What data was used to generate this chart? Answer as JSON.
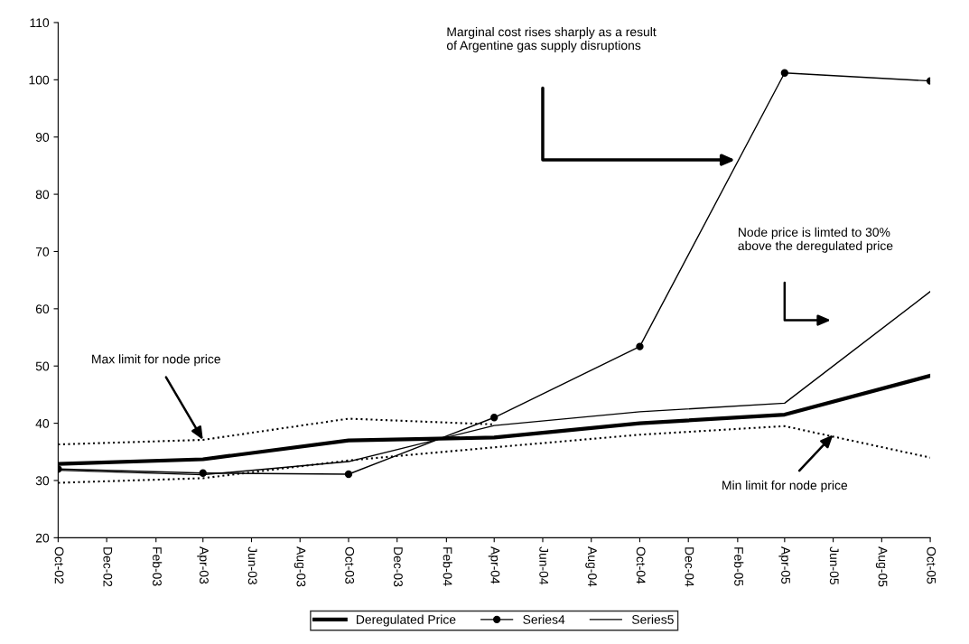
{
  "chart_data": {
    "type": "line",
    "ylim": [
      20,
      110
    ],
    "yticks": [
      20,
      30,
      40,
      50,
      60,
      70,
      80,
      90,
      100,
      110
    ],
    "xlim": [
      "2002-10",
      "2005-10"
    ],
    "xticks": [
      {
        "value": "2002-10",
        "label": "Oct-02"
      },
      {
        "value": "2002-12",
        "label": "Dec-02"
      },
      {
        "value": "2003-02",
        "label": "Feb-03"
      },
      {
        "value": "2003-04",
        "label": "Apr-03"
      },
      {
        "value": "2003-06",
        "label": "Jun-03"
      },
      {
        "value": "2003-08",
        "label": "Aug-03"
      },
      {
        "value": "2003-10",
        "label": "Oct-03"
      },
      {
        "value": "2003-12",
        "label": "Dec-03"
      },
      {
        "value": "2004-02",
        "label": "Feb-04"
      },
      {
        "value": "2004-04",
        "label": "Apr-04"
      },
      {
        "value": "2004-06",
        "label": "Jun-04"
      },
      {
        "value": "2004-08",
        "label": "Aug-04"
      },
      {
        "value": "2004-10",
        "label": "Oct-04"
      },
      {
        "value": "2004-12",
        "label": "Dec-04"
      },
      {
        "value": "2005-02",
        "label": "Feb-05"
      },
      {
        "value": "2005-04",
        "label": "Apr-05"
      },
      {
        "value": "2005-06",
        "label": "Jun-05"
      },
      {
        "value": "2005-08",
        "label": "Aug-05"
      },
      {
        "value": "2005-10",
        "label": "Oct-05"
      }
    ],
    "grid": false,
    "legend": "bottom",
    "series": [
      {
        "name": "Deregulated Price",
        "color": "#000000",
        "marker": "none",
        "line_style": "solid",
        "x": [
          "2002-10",
          "2003-04",
          "2003-10",
          "2004-04",
          "2004-10",
          "2005-04",
          "2005-10"
        ],
        "values": [
          32.9,
          33.7,
          37.0,
          37.5,
          40.0,
          41.5,
          48.3
        ]
      },
      {
        "name": "Series4",
        "color": "#000000",
        "marker": "circle",
        "line_style": "solid",
        "x": [
          "2002-10",
          "2003-04",
          "2003-10",
          "2004-04",
          "2004-10",
          "2005-04",
          "2005-10"
        ],
        "values": [
          32.0,
          31.3,
          31.1,
          41.0,
          53.4,
          101.2,
          99.8
        ]
      },
      {
        "name": "Series5",
        "color": "#000000",
        "marker": "none",
        "line_style": "solid",
        "x": [
          "2002-10",
          "2003-04",
          "2003-10",
          "2004-04",
          "2004-10",
          "2005-04",
          "2005-10"
        ],
        "values": [
          31.8,
          31.0,
          33.3,
          39.6,
          42.0,
          43.5,
          63.0
        ]
      },
      {
        "color": "#000000",
        "marker": "none",
        "line_style": "dotted",
        "x": [
          "2002-10",
          "2003-04",
          "2003-10",
          "2004-04"
        ],
        "values": [
          36.3,
          37.1,
          40.8,
          39.8
        ]
      },
      {
        "color": "#000000",
        "marker": "none",
        "line_style": "dotted",
        "x": [
          "2002-10",
          "2003-04",
          "2003-10",
          "2004-04",
          "2004-10",
          "2005-04",
          "2005-10"
        ],
        "values": [
          29.6,
          30.4,
          33.5,
          35.8,
          38.0,
          39.5,
          34.0
        ]
      }
    ],
    "annotations": [
      "Marginal cost rises sharply as a result\nof Argentine gas supply disruptions",
      "Node price is limted to 30%\nabove the deregulated price",
      {
        "text": "Max limit for node price",
        "x": "2003-04",
        "y": 37.1
      },
      {
        "text": "Min limit for node price",
        "x": "2005-06",
        "y": 38
      }
    ]
  }
}
